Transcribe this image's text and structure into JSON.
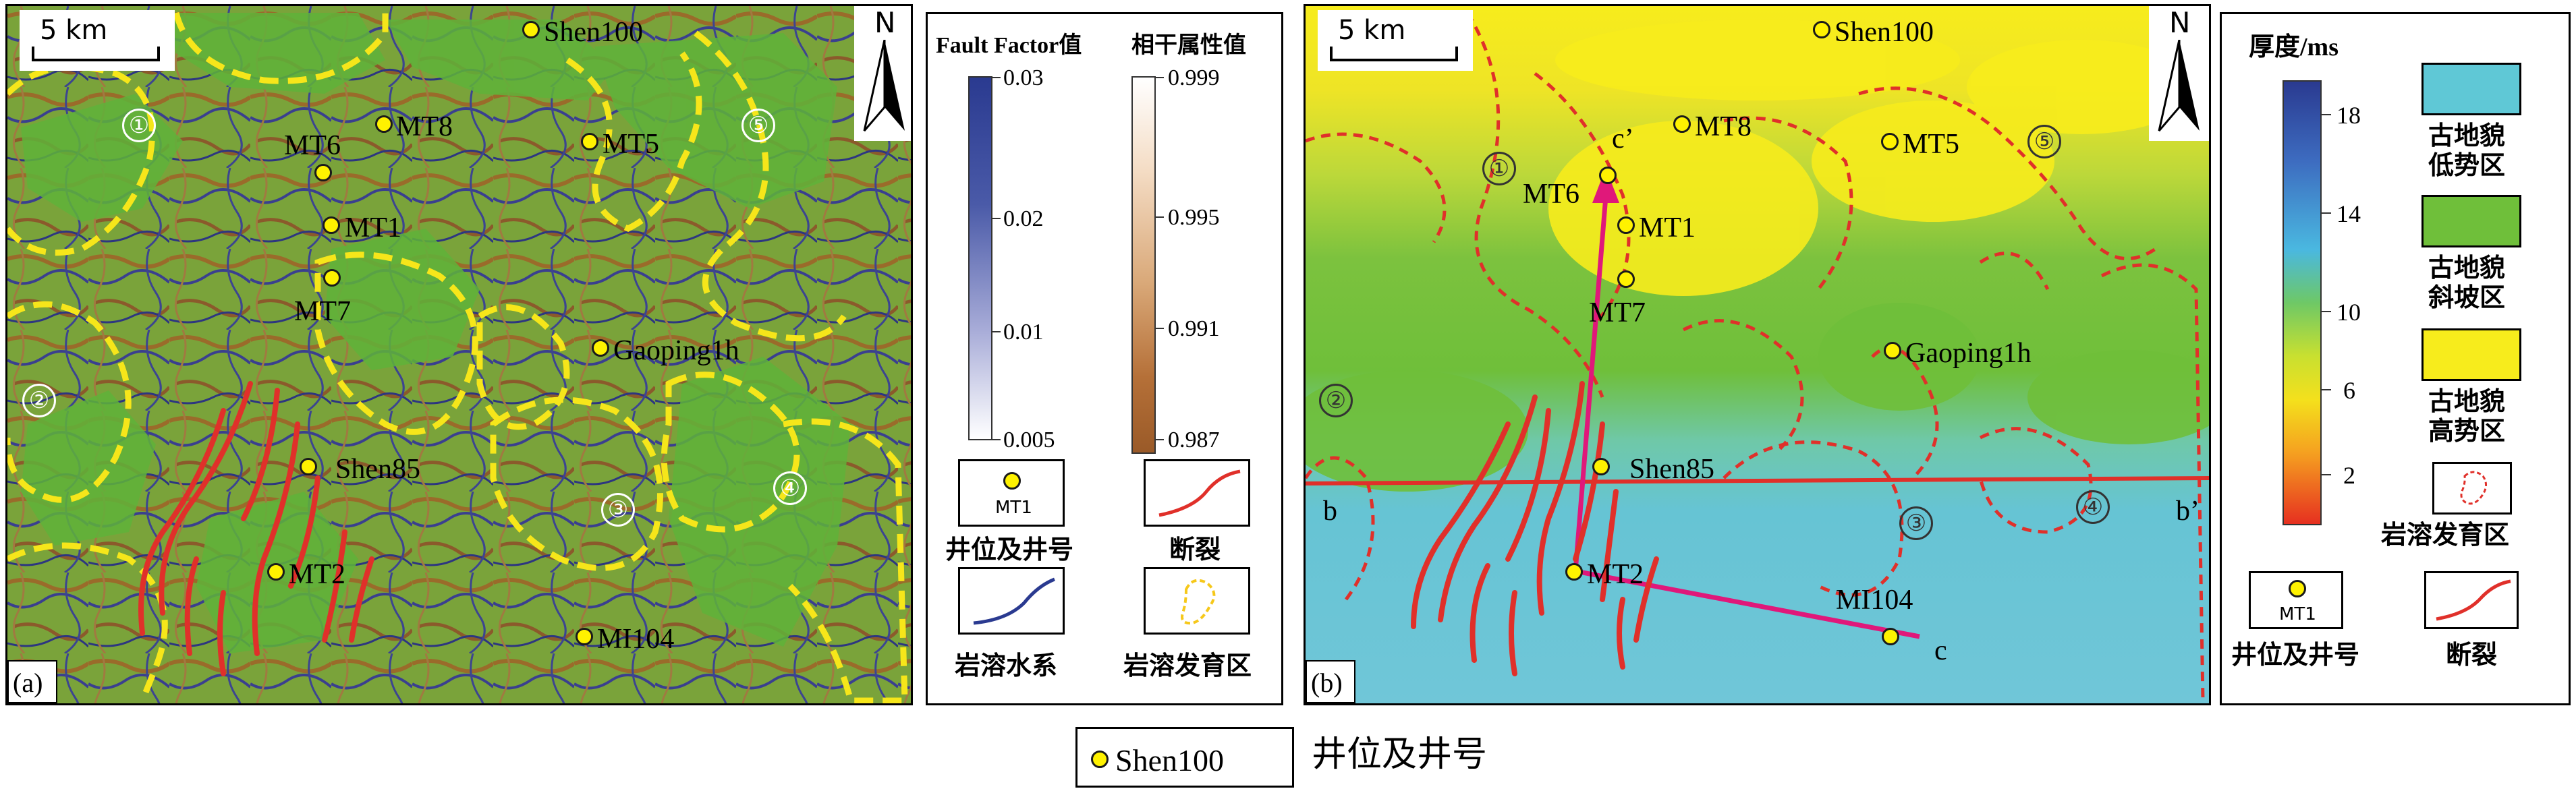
{
  "panel_a": {
    "tag": "(a)",
    "scale": "5 km",
    "north": "N",
    "regions": [
      "①",
      "②",
      "③",
      "④",
      "⑤"
    ],
    "wells": [
      {
        "name": "Shen100"
      },
      {
        "name": "MT8"
      },
      {
        "name": "MT6"
      },
      {
        "name": "MT5"
      },
      {
        "name": "MT1"
      },
      {
        "name": "MT7"
      },
      {
        "name": "Gaoping1h"
      },
      {
        "name": "Shen85"
      },
      {
        "name": "MT2"
      },
      {
        "name": "MI104"
      }
    ],
    "legend": {
      "fault_factor_title": "Fault Factor值",
      "fault_factor_ticks": [
        "0.03",
        "0.02",
        "0.01",
        "0.005"
      ],
      "coherence_title": "相干属性值",
      "coherence_ticks": [
        "0.999",
        "0.995",
        "0.991",
        "0.987"
      ],
      "well_sample": "MT1",
      "well_label": "井位及井号",
      "fault_label": "断裂",
      "drainage_label": "岩溶水系",
      "karst_label": "岩溶发育区"
    }
  },
  "panel_b": {
    "tag": "(b)",
    "scale": "5 km",
    "north": "N",
    "regions": [
      "①",
      "②",
      "③",
      "④",
      "⑤"
    ],
    "section_labels": {
      "b": "b",
      "b_prime": "b’",
      "c": "c",
      "c_prime": "c’"
    },
    "wells": [
      {
        "name": "Shen100"
      },
      {
        "name": "MT8"
      },
      {
        "name": "MT6"
      },
      {
        "name": "MT5"
      },
      {
        "name": "MT1"
      },
      {
        "name": "MT7"
      },
      {
        "name": "Gaoping1h"
      },
      {
        "name": "Shen85"
      },
      {
        "name": "MT2"
      },
      {
        "name": "MI104"
      }
    ],
    "legend": {
      "thickness_title": "厚度/ms",
      "thickness_ticks": [
        "18",
        "14",
        "10",
        "6",
        "2"
      ],
      "low_label": "古地貌低势区",
      "low_line1": "古地貌",
      "low_line2": "低势区",
      "slope_line1": "古地貌",
      "slope_line2": "斜坡区",
      "high_line1": "古地貌",
      "high_line2": "高势区",
      "karst_label": "岩溶发育区",
      "well_sample": "MT1",
      "well_label": "井位及井号",
      "fault_label": "断裂",
      "colors": {
        "low": "#5fc8d6",
        "slope": "#6fbf3a",
        "high": "#f7ec1c"
      }
    }
  },
  "bottom_legend": {
    "well": "Shen100",
    "label": "井位及井号"
  }
}
